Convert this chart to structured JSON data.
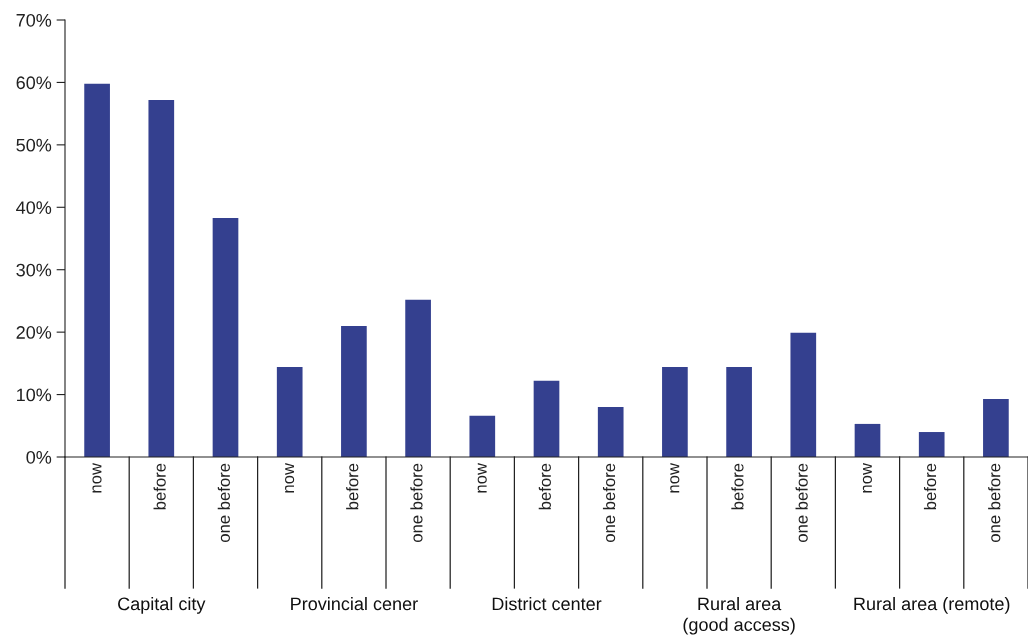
{
  "chart_data": {
    "type": "bar",
    "categories": [
      "now",
      "before",
      "one before",
      "now",
      "before",
      "one before",
      "now",
      "before",
      "one before",
      "now",
      "before",
      "one before",
      "now",
      "before",
      "one before"
    ],
    "values": [
      59.8,
      57.2,
      38.3,
      14.4,
      21.0,
      25.2,
      6.6,
      12.2,
      8.0,
      14.4,
      14.4,
      19.9,
      5.3,
      4.0,
      9.3
    ],
    "color": "#34408f",
    "ylim": [
      0,
      70
    ],
    "yticks": [
      {
        "value": 0,
        "label": "0%"
      },
      {
        "value": 10,
        "label": "10%"
      },
      {
        "value": 20,
        "label": "20%"
      },
      {
        "value": 30,
        "label": "30%"
      },
      {
        "value": 40,
        "label": "40%"
      },
      {
        "value": 50,
        "label": "50%"
      },
      {
        "value": 60,
        "label": "60%"
      },
      {
        "value": 70,
        "label": "70%"
      }
    ],
    "annotations": [
      "Capital city",
      "Provincial cener",
      "District center",
      "Rural area\n(good access)",
      "Rural area (remote)"
    ],
    "grid": false
  }
}
